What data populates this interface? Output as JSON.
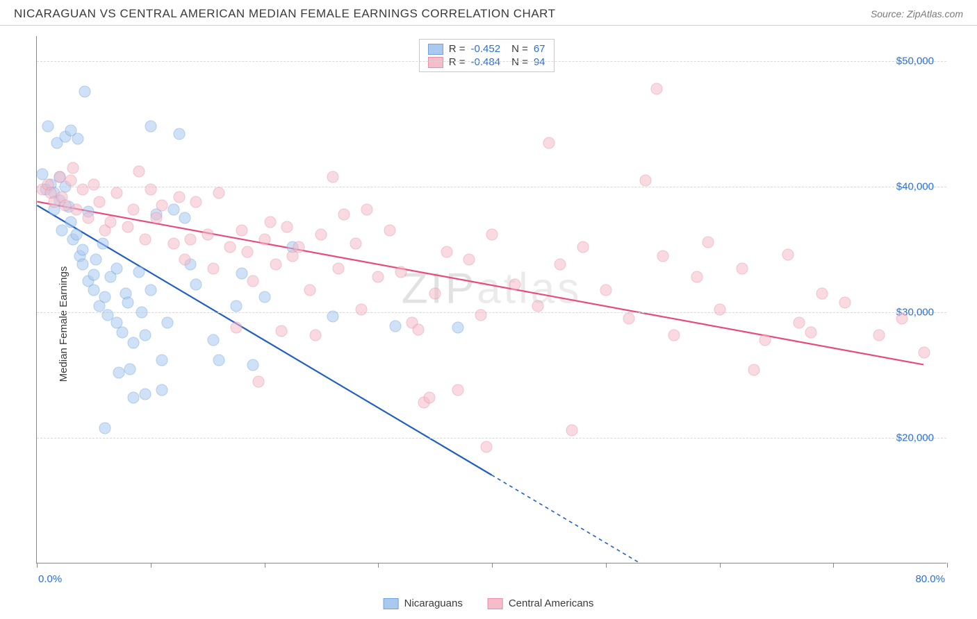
{
  "title": "NICARAGUAN VS CENTRAL AMERICAN MEDIAN FEMALE EARNINGS CORRELATION CHART",
  "source_label": "Source: ZipAtlas.com",
  "y_axis_label": "Median Female Earnings",
  "watermark_a": "ZIP",
  "watermark_b": "atlas",
  "chart": {
    "type": "scatter",
    "x_range": [
      0,
      80
    ],
    "y_range": [
      10000,
      52000
    ],
    "y_ticks": [
      20000,
      30000,
      40000,
      50000
    ],
    "y_tick_labels": [
      "$20,000",
      "$30,000",
      "$40,000",
      "$50,000"
    ],
    "x_tick_positions": [
      0,
      10,
      20,
      30,
      40,
      50,
      60,
      70,
      80
    ],
    "x_min_label": "0.0%",
    "x_max_label": "80.0%",
    "grid_color": "#d8d8d8",
    "axis_color": "#888888",
    "background": "#ffffff",
    "marker_radius": 8.5,
    "marker_opacity": 0.55,
    "series": [
      {
        "name": "Nicaraguans",
        "legend_label": "Nicaraguans",
        "color_fill": "#a9c9ef",
        "color_stroke": "#6fa3de",
        "trend_color": "#1f5fc4",
        "r_label": "R =",
        "r_value": "-0.452",
        "n_label": "N =",
        "n_value": "67",
        "trend": {
          "x1": 0,
          "y1": 38500,
          "x2_solid": 40,
          "y2_solid": 17000,
          "x2_dash": 53,
          "y2_dash": 10000
        },
        "points": [
          [
            0.5,
            41000
          ],
          [
            0.8,
            39800
          ],
          [
            1.0,
            44800
          ],
          [
            1.2,
            40200
          ],
          [
            1.5,
            39500
          ],
          [
            1.5,
            38200
          ],
          [
            1.8,
            43500
          ],
          [
            2.0,
            40800
          ],
          [
            2.0,
            38900
          ],
          [
            2.2,
            36500
          ],
          [
            2.5,
            44000
          ],
          [
            2.5,
            40000
          ],
          [
            2.8,
            38400
          ],
          [
            3.0,
            37200
          ],
          [
            3.0,
            44500
          ],
          [
            3.2,
            35800
          ],
          [
            3.5,
            36200
          ],
          [
            3.6,
            43800
          ],
          [
            3.8,
            34500
          ],
          [
            4.0,
            33800
          ],
          [
            4.0,
            35000
          ],
          [
            4.2,
            47600
          ],
          [
            4.5,
            32500
          ],
          [
            4.5,
            38000
          ],
          [
            5.0,
            31800
          ],
          [
            5.0,
            33000
          ],
          [
            5.2,
            34200
          ],
          [
            5.5,
            30500
          ],
          [
            5.8,
            35500
          ],
          [
            6.0,
            20800
          ],
          [
            6.0,
            31200
          ],
          [
            6.2,
            29800
          ],
          [
            6.5,
            32800
          ],
          [
            7.0,
            33500
          ],
          [
            7.0,
            29200
          ],
          [
            7.2,
            25200
          ],
          [
            7.5,
            28400
          ],
          [
            7.8,
            31500
          ],
          [
            8.0,
            30800
          ],
          [
            8.2,
            25500
          ],
          [
            8.5,
            27600
          ],
          [
            8.5,
            23200
          ],
          [
            9.0,
            33200
          ],
          [
            9.2,
            30000
          ],
          [
            9.5,
            28200
          ],
          [
            9.5,
            23500
          ],
          [
            10.0,
            31800
          ],
          [
            10.0,
            44800
          ],
          [
            10.5,
            37800
          ],
          [
            11.0,
            26200
          ],
          [
            11.0,
            23800
          ],
          [
            11.5,
            29200
          ],
          [
            12.0,
            38200
          ],
          [
            12.5,
            44200
          ],
          [
            13.0,
            37500
          ],
          [
            13.5,
            33800
          ],
          [
            14.0,
            32200
          ],
          [
            15.5,
            27800
          ],
          [
            16.0,
            26200
          ],
          [
            17.5,
            30500
          ],
          [
            18.0,
            33100
          ],
          [
            19.0,
            25800
          ],
          [
            20.0,
            31200
          ],
          [
            22.5,
            35200
          ],
          [
            26.0,
            29700
          ],
          [
            31.5,
            28900
          ],
          [
            37.0,
            28800
          ]
        ]
      },
      {
        "name": "Central Americans",
        "legend_label": "Central Americans",
        "color_fill": "#f5bcc9",
        "color_stroke": "#e88fa5",
        "trend_color": "#e74a7b",
        "r_label": "R =",
        "r_value": "-0.484",
        "n_label": "N =",
        "n_value": "94",
        "trend": {
          "x1": 0,
          "y1": 38800,
          "x2_solid": 78,
          "y2_solid": 25800,
          "x2_dash": 78,
          "y2_dash": 25800
        },
        "points": [
          [
            0.5,
            39800
          ],
          [
            1.0,
            40200
          ],
          [
            1.2,
            39500
          ],
          [
            1.5,
            38800
          ],
          [
            2.0,
            40800
          ],
          [
            2.2,
            39200
          ],
          [
            2.5,
            38500
          ],
          [
            3.0,
            40500
          ],
          [
            3.2,
            41500
          ],
          [
            3.5,
            38200
          ],
          [
            4.0,
            39800
          ],
          [
            4.5,
            37500
          ],
          [
            5.0,
            40200
          ],
          [
            5.5,
            38800
          ],
          [
            6.0,
            36500
          ],
          [
            6.5,
            37200
          ],
          [
            7.0,
            39500
          ],
          [
            8.0,
            36800
          ],
          [
            8.5,
            38200
          ],
          [
            9.0,
            41200
          ],
          [
            9.5,
            35800
          ],
          [
            10.0,
            39800
          ],
          [
            10.5,
            37500
          ],
          [
            11.0,
            38500
          ],
          [
            12.0,
            35500
          ],
          [
            12.5,
            39200
          ],
          [
            13.0,
            34200
          ],
          [
            13.5,
            35800
          ],
          [
            14.0,
            38800
          ],
          [
            15.0,
            36200
          ],
          [
            15.5,
            33500
          ],
          [
            16.0,
            39500
          ],
          [
            17.0,
            35200
          ],
          [
            17.5,
            28800
          ],
          [
            18.0,
            36500
          ],
          [
            18.5,
            34800
          ],
          [
            19.0,
            32500
          ],
          [
            19.5,
            24500
          ],
          [
            20.0,
            35800
          ],
          [
            20.5,
            37200
          ],
          [
            21.0,
            33800
          ],
          [
            21.5,
            28500
          ],
          [
            22.0,
            36800
          ],
          [
            22.5,
            34500
          ],
          [
            23.0,
            35200
          ],
          [
            24.0,
            31800
          ],
          [
            24.5,
            28200
          ],
          [
            25.0,
            36200
          ],
          [
            26.0,
            40800
          ],
          [
            26.5,
            33500
          ],
          [
            27.0,
            37800
          ],
          [
            28.0,
            35500
          ],
          [
            28.5,
            30200
          ],
          [
            29.0,
            38200
          ],
          [
            30.0,
            32800
          ],
          [
            31.0,
            36500
          ],
          [
            32.0,
            33200
          ],
          [
            33.0,
            29200
          ],
          [
            33.5,
            28600
          ],
          [
            34.0,
            22800
          ],
          [
            34.5,
            23200
          ],
          [
            35.0,
            31500
          ],
          [
            36.0,
            34800
          ],
          [
            37.0,
            23800
          ],
          [
            38.0,
            34200
          ],
          [
            39.0,
            29800
          ],
          [
            39.5,
            19300
          ],
          [
            40.0,
            36200
          ],
          [
            42.0,
            32200
          ],
          [
            44.0,
            30500
          ],
          [
            45.0,
            43500
          ],
          [
            46.0,
            33800
          ],
          [
            47.0,
            20600
          ],
          [
            48.0,
            35200
          ],
          [
            50.0,
            31800
          ],
          [
            52.0,
            29500
          ],
          [
            53.5,
            40500
          ],
          [
            54.5,
            47800
          ],
          [
            55.0,
            34500
          ],
          [
            56.0,
            28200
          ],
          [
            58.0,
            32800
          ],
          [
            59.0,
            35600
          ],
          [
            60.0,
            30200
          ],
          [
            62.0,
            33500
          ],
          [
            63.0,
            25400
          ],
          [
            64.0,
            27800
          ],
          [
            66.0,
            34600
          ],
          [
            67.0,
            29200
          ],
          [
            68.0,
            28400
          ],
          [
            69.0,
            31500
          ],
          [
            71.0,
            30800
          ],
          [
            74.0,
            28200
          ],
          [
            76.0,
            29500
          ],
          [
            78.0,
            26800
          ]
        ]
      }
    ]
  }
}
